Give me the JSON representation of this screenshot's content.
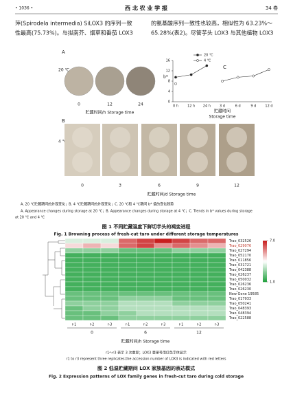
{
  "header": {
    "page": "• 1036 •",
    "journal": "西 北 农 业 学 报",
    "volume": "34 卷"
  },
  "body": {
    "left": [
      "萍(Spirodela intermedia) SiLOX3 的序列一致",
      "性最高(75.73%)。与拟南芥、烟草和番茄 LOX3"
    ],
    "right": [
      "的氨基酸序列一致性也较高，相似性为 63.23%～",
      "65.28%(表2)。尽管芋头 LOX3 与其他植物 LOX3"
    ]
  },
  "figure1": {
    "panel_a": "A",
    "temp_a": "20 ℃",
    "times_a": [
      "0",
      "12",
      "24"
    ],
    "axis_a": "贮藏时间/h  Storage time",
    "panel_b": "B",
    "temp_b": "4 ℃",
    "times_b": [
      "0",
      "3",
      "6",
      "9",
      "12"
    ],
    "axis_b": "贮藏时间/d  Storage time",
    "note_cn": "A. 20 ℃贮藏期间的外观变化；B. 4 ℃贮藏期间的外观变化；C. 20 ℃和 4 ℃期间 b* 值的变化趋势",
    "note_en_1": "A. Appearance changes during storage at 20 ℃；B. Appearance changes during storage at 4 ℃；C. Trends in b* values during storage",
    "note_en_2": "at 20 ℃ and 4 ℃",
    "title_cn": "图 1   不同贮藏温度下鲜切芋头的褐变进程",
    "title_en": "Fig. 1   Browning process of fresh-cut taro under different storage temperatures"
  },
  "figure2": {
    "note_cn": "r1～r3 表示 3 次重复；LOX3 登录号用红色字体显示",
    "note_en": "r1 to r3 represent three replicates;the accession number of LOX3 is indicated with red letters",
    "title_cn": "图 2   低温贮藏期间 LOX 家族基因的表达模式",
    "title_en": "Fig. 2   Expression patterns of LOX family genes in fresh-cut taro during cold storage"
  },
  "chart_data": [
    {
      "type": "line",
      "panel": "C",
      "y_label": "b*",
      "x_label": "贮藏时间",
      "x_label_en": "Storage time",
      "categories": [
        "0 h",
        "12 h",
        "24 h",
        "3 d",
        "6 d",
        "9 d",
        "12 d"
      ],
      "ylim": [
        0,
        16
      ],
      "yticks": [
        0,
        4,
        8,
        12,
        16
      ],
      "series": [
        {
          "name": "20 ℃",
          "color": "#222222",
          "marker": "filled",
          "values": [
            9.5,
            10.5,
            14,
            null,
            null,
            null,
            null
          ]
        },
        {
          "name": "4 ℃",
          "color": "#222222",
          "marker": "open",
          "values": [
            7,
            null,
            null,
            8,
            9.5,
            10,
            12.5
          ]
        }
      ]
    },
    {
      "type": "heatmap",
      "rows": [
        "Trao_032526",
        "Trao_029076",
        "Trao_027294",
        "Trao_052170",
        "Trao_011856",
        "Trao_031721",
        "Trao_042388",
        "Trao_026237",
        "Trao_050032",
        "Trao_026236",
        "Trao_026230",
        "New Gene 19585",
        "Trao_017933",
        "Trao_050241",
        "Trao_048393",
        "Trao_048394",
        "Trao_022588"
      ],
      "highlight_rows": [
        1
      ],
      "highlight_color": "#c0392b",
      "columns": [
        "r-1",
        "r-2",
        "r-3",
        "r-1",
        "r-2",
        "r-3",
        "r-1",
        "r-2",
        "r-3"
      ],
      "groups": [
        "0",
        "6",
        "12"
      ],
      "x_label": "贮藏时间/h  Storage time",
      "colorbar": [
        {
          "value": 7,
          "label": "7.0"
        },
        {
          "value": 1,
          "label": "1.0"
        }
      ],
      "values": [
        [
          3.5,
          3.5,
          3.5,
          6,
          6.5,
          7,
          6.5,
          6,
          6
        ],
        [
          4.5,
          5,
          4.5,
          6,
          6.5,
          5.5,
          6,
          5.5,
          5
        ],
        [
          2.5,
          2.5,
          2.5,
          2,
          2,
          2,
          2.5,
          2.5,
          2.5
        ],
        [
          1.5,
          1.5,
          1.5,
          1.5,
          1.5,
          1.5,
          1.5,
          1.5,
          1.5
        ],
        [
          1.5,
          1.5,
          1.5,
          1.5,
          1.5,
          1.5,
          1.5,
          1.5,
          1.5
        ],
        [
          1.5,
          1.5,
          1.5,
          1.5,
          1.5,
          1.5,
          1.5,
          1.5,
          1.5
        ],
        [
          1.5,
          1.5,
          1.5,
          1.5,
          1.5,
          1.5,
          1.5,
          1.5,
          1.5
        ],
        [
          1.5,
          1.5,
          1.5,
          1.5,
          1.5,
          1.5,
          1.5,
          1.5,
          1.5
        ],
        [
          1.5,
          1.5,
          1.5,
          1.5,
          1.5,
          1.5,
          1.5,
          1.5,
          1.5
        ],
        [
          1.5,
          1.5,
          1.5,
          1.5,
          1.5,
          1.5,
          1.5,
          1.5,
          1.5
        ],
        [
          1.5,
          1.5,
          1.5,
          1.5,
          1.5,
          1.5,
          1.5,
          1.5,
          1.5
        ],
        [
          2,
          2,
          2,
          2,
          2,
          2,
          2,
          2,
          2
        ],
        [
          2,
          2,
          2,
          2.5,
          2.5,
          2.5,
          2,
          2,
          2
        ],
        [
          2.5,
          2.5,
          2.5,
          3,
          3,
          3,
          2.5,
          2.5,
          2.5
        ],
        [
          2,
          2.5,
          2.5,
          3,
          3,
          3,
          3,
          3,
          3
        ],
        [
          2,
          2,
          2.5,
          2.5,
          3,
          3,
          3,
          3,
          3
        ],
        [
          2,
          2,
          2,
          2.5,
          2.5,
          2.5,
          2.5,
          2.5,
          2.5
        ]
      ]
    }
  ]
}
